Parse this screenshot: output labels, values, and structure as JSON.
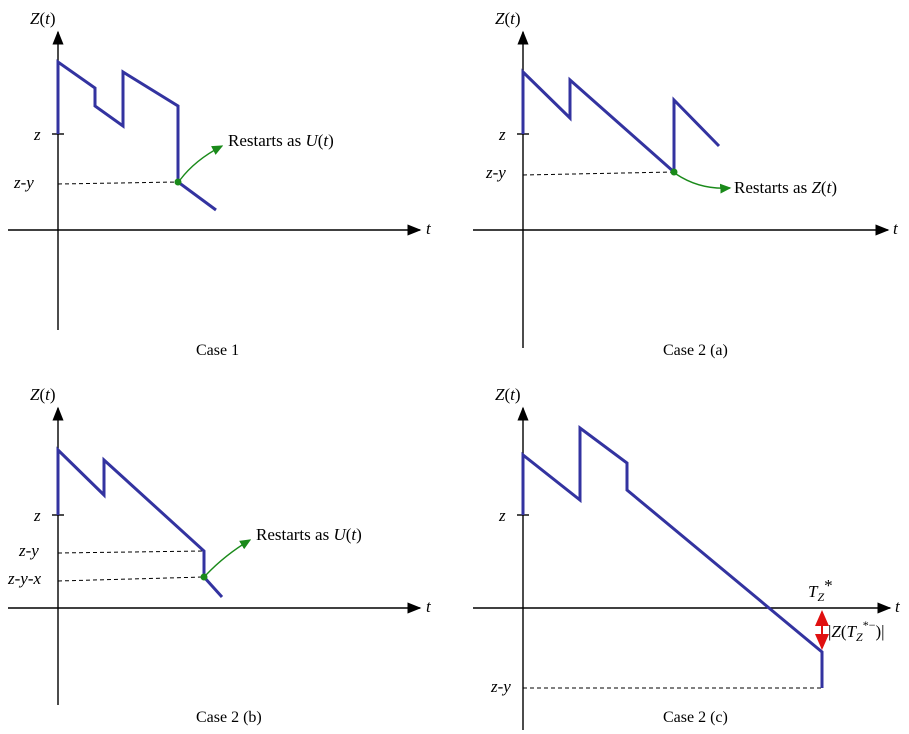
{
  "panels": [
    {
      "id": "case1",
      "ylabel": "Z(t)",
      "xlabel": "t",
      "level_labels": [
        "z",
        "z-y"
      ],
      "annotation": "Restarts as U(t)",
      "caption": "Case 1"
    },
    {
      "id": "case2a",
      "ylabel": "Z(t)",
      "xlabel": "t",
      "level_labels": [
        "z",
        "z-y"
      ],
      "annotation": "Restarts as Z(t)",
      "caption": "Case 2 (a)"
    },
    {
      "id": "case2b",
      "ylabel": "Z(t)",
      "xlabel": "t",
      "level_labels": [
        "z",
        "z-y",
        "z-y-x"
      ],
      "annotation": "Restarts as U(t)",
      "caption": "Case 2 (b)"
    },
    {
      "id": "case2c",
      "ylabel": "Z(t)",
      "xlabel": "t",
      "level_labels": [
        "z",
        "z-y"
      ],
      "time_label": "Tz*",
      "overshoot_label": "|Z(Tz*−)|",
      "caption": "Case 2 (c)"
    }
  ],
  "colors": {
    "path": "#3333a0",
    "annotation_arrow": "#1a8a1a",
    "overshoot_arrow": "#e01010"
  }
}
